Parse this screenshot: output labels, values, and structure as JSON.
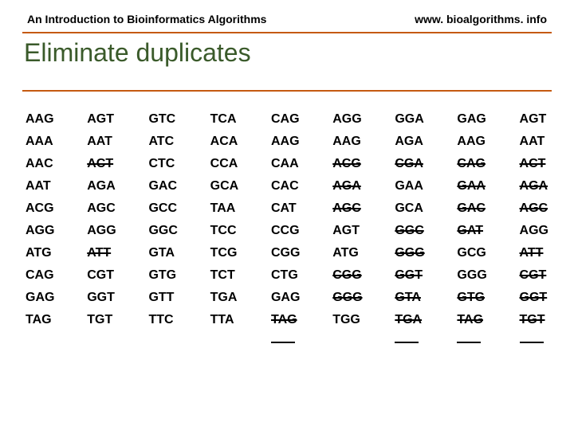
{
  "header": {
    "left": "An Introduction to Bioinformatics Algorithms",
    "right": "www. bioalgorithms. info"
  },
  "title": "Eliminate duplicates",
  "columns": [
    [
      {
        "t": "AAG",
        "s": false
      },
      {
        "t": "AAA",
        "s": false
      },
      {
        "t": "AAC",
        "s": false
      },
      {
        "t": "AAT",
        "s": false
      },
      {
        "t": "ACG",
        "s": false
      },
      {
        "t": "AGG",
        "s": false
      },
      {
        "t": "ATG",
        "s": false
      },
      {
        "t": "CAG",
        "s": false
      },
      {
        "t": "GAG",
        "s": false
      },
      {
        "t": "TAG",
        "s": false
      }
    ],
    [
      {
        "t": "AGT",
        "s": false
      },
      {
        "t": "AAT",
        "s": false
      },
      {
        "t": "ACT",
        "s": true
      },
      {
        "t": "AGA",
        "s": false
      },
      {
        "t": "AGC",
        "s": false
      },
      {
        "t": "AGG",
        "s": false
      },
      {
        "t": "ATT",
        "s": true
      },
      {
        "t": "CGT",
        "s": false
      },
      {
        "t": "GGT",
        "s": false
      },
      {
        "t": "TGT",
        "s": false
      }
    ],
    [
      {
        "t": "GTC",
        "s": false
      },
      {
        "t": "ATC",
        "s": false
      },
      {
        "t": "CTC",
        "s": false
      },
      {
        "t": "GAC",
        "s": false
      },
      {
        "t": "GCC",
        "s": false
      },
      {
        "t": "GGC",
        "s": false
      },
      {
        "t": "GTA",
        "s": false
      },
      {
        "t": "GTG",
        "s": false
      },
      {
        "t": "GTT",
        "s": false
      },
      {
        "t": "TTC",
        "s": false
      }
    ],
    [
      {
        "t": "TCA",
        "s": false
      },
      {
        "t": "ACA",
        "s": false
      },
      {
        "t": "CCA",
        "s": false
      },
      {
        "t": "GCA",
        "s": false
      },
      {
        "t": "TAA",
        "s": false
      },
      {
        "t": "TCC",
        "s": false
      },
      {
        "t": "TCG",
        "s": false
      },
      {
        "t": "TCT",
        "s": false
      },
      {
        "t": "TGA",
        "s": false
      },
      {
        "t": "TTA",
        "s": false
      }
    ],
    [
      {
        "t": "CAG",
        "s": false
      },
      {
        "t": "AAG",
        "s": false
      },
      {
        "t": "CAA",
        "s": false
      },
      {
        "t": "CAC",
        "s": false
      },
      {
        "t": "CAT",
        "s": false
      },
      {
        "t": "CCG",
        "s": false
      },
      {
        "t": "CGG",
        "s": false
      },
      {
        "t": "CTG",
        "s": false
      },
      {
        "t": "GAG",
        "s": false
      },
      {
        "t": "TAG",
        "s": true
      },
      {
        "t": "",
        "s": true
      }
    ],
    [
      {
        "t": "AGG",
        "s": false
      },
      {
        "t": "AAG",
        "s": false
      },
      {
        "t": "ACG",
        "s": true
      },
      {
        "t": "AGA",
        "s": true
      },
      {
        "t": "AGC",
        "s": true
      },
      {
        "t": "AGT",
        "s": false
      },
      {
        "t": "ATG",
        "s": false
      },
      {
        "t": "CGG",
        "s": true
      },
      {
        "t": "GGG",
        "s": true
      },
      {
        "t": "TGG",
        "s": false
      }
    ],
    [
      {
        "t": "GGA",
        "s": false
      },
      {
        "t": "AGA",
        "s": false
      },
      {
        "t": "CGA",
        "s": true
      },
      {
        "t": "GAA",
        "s": false
      },
      {
        "t": "GCA",
        "s": false
      },
      {
        "t": "GGC",
        "s": true
      },
      {
        "t": "GGG",
        "s": true
      },
      {
        "t": "GGT",
        "s": true
      },
      {
        "t": "GTA",
        "s": true
      },
      {
        "t": "TGA",
        "s": true
      },
      {
        "t": "",
        "s": true
      }
    ],
    [
      {
        "t": "GAG",
        "s": false
      },
      {
        "t": "AAG",
        "s": false
      },
      {
        "t": "CAG",
        "s": true
      },
      {
        "t": "GAA",
        "s": true
      },
      {
        "t": "GAC",
        "s": true
      },
      {
        "t": "GAT",
        "s": true
      },
      {
        "t": "GCG",
        "s": false
      },
      {
        "t": "GGG",
        "s": false
      },
      {
        "t": "GTG",
        "s": true
      },
      {
        "t": "TAG",
        "s": true
      },
      {
        "t": "",
        "s": true
      }
    ],
    [
      {
        "t": "AGT",
        "s": false
      },
      {
        "t": "AAT",
        "s": false
      },
      {
        "t": "ACT",
        "s": true
      },
      {
        "t": "AGA",
        "s": true
      },
      {
        "t": "AGC",
        "s": true
      },
      {
        "t": "AGG",
        "s": false
      },
      {
        "t": "ATT",
        "s": true
      },
      {
        "t": "CGT",
        "s": true
      },
      {
        "t": "GGT",
        "s": true
      },
      {
        "t": "TGT",
        "s": true
      },
      {
        "t": "",
        "s": true
      }
    ]
  ]
}
